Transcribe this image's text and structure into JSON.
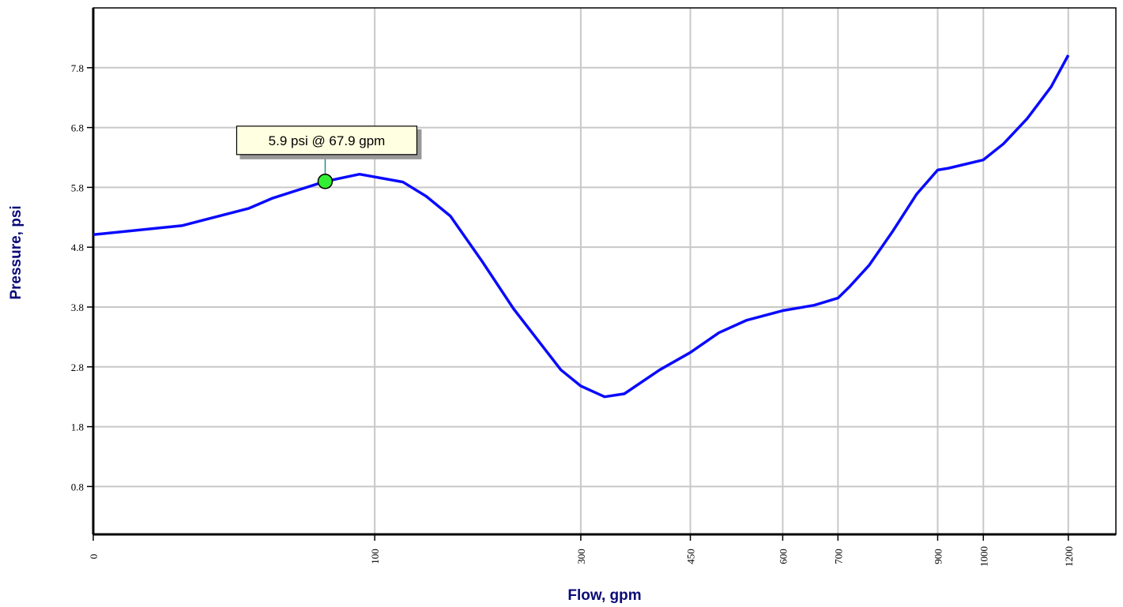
{
  "chart_data": {
    "type": "line",
    "xlabel": "Flow, gpm",
    "ylabel": "Pressure, psi",
    "xscale": "sqrt",
    "x": [
      0,
      9.9,
      30.6,
      40.6,
      67.9,
      89.5,
      121,
      140,
      161,
      191,
      223,
      276,
      300,
      330,
      356,
      405,
      450,
      494,
      539,
      600,
      656,
      700,
      722,
      760,
      807,
      856,
      900,
      923,
      1000,
      1046,
      1101,
      1158,
      1200
    ],
    "series": [
      {
        "name": "Pressure",
        "color": "#0a0aff",
        "values": [
          5.01,
          5.16,
          5.45,
          5.62,
          5.9,
          6.02,
          5.89,
          5.65,
          5.32,
          4.56,
          3.77,
          2.75,
          2.48,
          2.3,
          2.35,
          2.75,
          3.04,
          3.37,
          3.58,
          3.74,
          3.83,
          3.95,
          4.14,
          4.5,
          5.07,
          5.69,
          6.09,
          6.12,
          6.26,
          6.53,
          6.95,
          7.48,
          8.01
        ]
      }
    ],
    "xlim": [
      0,
      1320
    ],
    "xticks": [
      0,
      100,
      300,
      450,
      600,
      700,
      900,
      1000,
      1200
    ],
    "ylim": [
      0,
      8.8
    ],
    "yticks": [
      0.8,
      1.8,
      2.8,
      3.8,
      4.8,
      5.8,
      6.8,
      7.8
    ],
    "grid": true,
    "annotation": {
      "text": "5.9 psi @ 67.9 gpm",
      "x": 67.9,
      "y": 5.9
    }
  }
}
